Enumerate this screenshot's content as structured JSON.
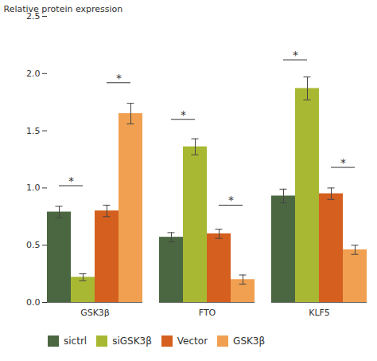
{
  "chart_data": {
    "type": "bar",
    "categories": [
      "GSK3β",
      "FTO",
      "KLF5"
    ],
    "series": [
      {
        "name": "sictrl",
        "color": "#4a6741",
        "values": [
          0.79,
          0.57,
          0.93
        ],
        "errors": [
          0.05,
          0.04,
          0.06
        ]
      },
      {
        "name": "siGSK3β",
        "color": "#a8b832",
        "values": [
          0.22,
          1.36,
          1.87
        ],
        "errors": [
          0.03,
          0.07,
          0.1
        ]
      },
      {
        "name": "Vector",
        "color": "#d45f1e",
        "values": [
          0.8,
          0.6,
          0.95
        ],
        "errors": [
          0.05,
          0.04,
          0.05
        ]
      },
      {
        "name": "GSK3β",
        "color": "#f0a050",
        "values": [
          1.65,
          0.2,
          0.46
        ],
        "errors": [
          0.09,
          0.04,
          0.04
        ]
      }
    ],
    "ylabel": "Relative protein expression",
    "ylim": [
      0.0,
      2.5
    ],
    "yticks": [
      {
        "value": 0.0,
        "label": "0.0"
      },
      0.5,
      {
        "value": 1.0,
        "label": "1.0"
      },
      1.5,
      {
        "value": 2.0,
        "label": "2.0"
      },
      2.5
    ],
    "annotations": [
      {
        "text": "*",
        "category": "GSK3β",
        "from": "sictrl",
        "to": "siGSK3β",
        "y": 1.02
      },
      {
        "text": "*",
        "category": "GSK3β",
        "from": "Vector",
        "to": "GSK3β",
        "y": 1.92
      },
      {
        "text": "*",
        "category": "FTO",
        "from": "sictrl",
        "to": "siGSK3β",
        "y": 1.6
      },
      {
        "text": "*",
        "category": "FTO",
        "from": "Vector",
        "to": "GSK3β",
        "y": 0.85
      },
      {
        "text": "*",
        "category": "KLF5",
        "from": "sictrl",
        "to": "siGSK3β",
        "y": 2.12
      },
      {
        "text": "*",
        "category": "KLF5",
        "from": "Vector",
        "to": "GSK3β",
        "y": 1.18
      }
    ],
    "grid": false,
    "legend": "bottom"
  }
}
